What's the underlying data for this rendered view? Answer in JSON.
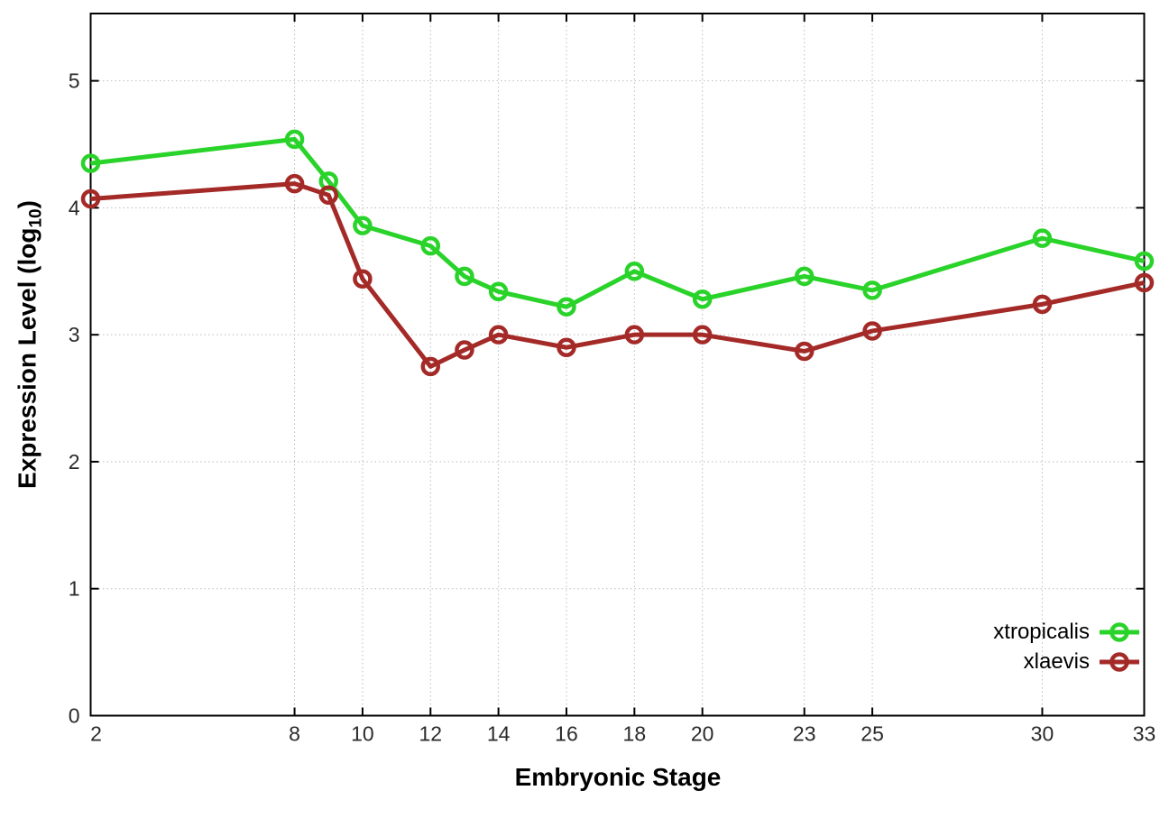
{
  "chart_data": {
    "type": "line",
    "title": "",
    "xlabel": "Embryonic Stage",
    "ylabel": "Expression Level (log10)",
    "ylabel_parts": {
      "main": "Expression Level (log",
      "sub": "10",
      "end": ")"
    },
    "x": [
      2,
      8,
      9,
      10,
      12,
      13,
      14,
      16,
      18,
      20,
      23,
      25,
      30,
      33
    ],
    "series": [
      {
        "name": "xtropicalis",
        "color": "#29d329",
        "values": [
          4.35,
          4.54,
          4.21,
          3.86,
          3.7,
          3.46,
          3.34,
          3.22,
          3.5,
          3.28,
          3.46,
          3.35,
          3.76,
          3.58
        ]
      },
      {
        "name": "xlaevis",
        "color": "#a42a28",
        "values": [
          4.07,
          4.19,
          4.1,
          3.44,
          2.75,
          2.88,
          3.0,
          2.9,
          3.0,
          3.0,
          2.87,
          3.03,
          3.24,
          3.41
        ]
      }
    ],
    "xticks": [
      2,
      8,
      10,
      12,
      14,
      16,
      18,
      20,
      23,
      25,
      30,
      33
    ],
    "yticks": [
      0,
      1,
      2,
      3,
      4,
      5
    ],
    "xlim": [
      2,
      33
    ],
    "ylim": [
      0,
      5.53
    ],
    "grid": true,
    "grid_style": "dotted",
    "legend_position": "bottom-right-inside",
    "marker": "open-circle",
    "axis_color": "#000000",
    "grid_color": "#bdbdbd",
    "tick_label_color": "#2a2a2a"
  }
}
